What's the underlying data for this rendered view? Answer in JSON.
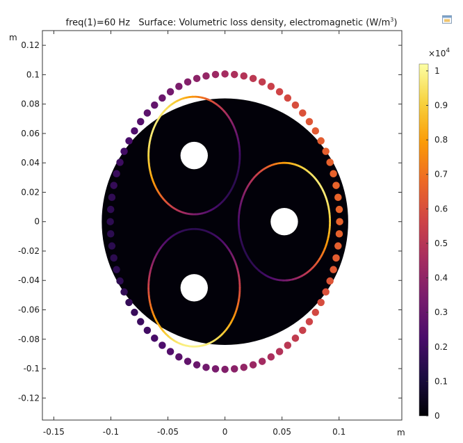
{
  "plot_title": {
    "freq_label": "freq(1)=60 Hz",
    "surface_prefix": "Surface: Volumetric loss density, electromagnetic (W/m",
    "exponent": "3",
    "suffix": ")"
  },
  "corner_icon": "window-toolbar-icon",
  "chart_data": {
    "type": "heatmap",
    "title": "freq(1)=60 Hz   Surface: Volumetric loss density, electromagnetic (W/m3)",
    "xlabel": "m",
    "ylabel": "m",
    "xlim": [
      -0.16,
      0.155
    ],
    "ylim": [
      -0.135,
      0.13
    ],
    "x_ticks": [
      -0.15,
      -0.1,
      -0.05,
      0,
      0.05,
      0.1
    ],
    "x_tick_labels": [
      "-0.15",
      "-0.1",
      "-0.05",
      "0",
      "0.05",
      "0.1"
    ],
    "y_ticks": [
      0.12,
      0.1,
      0.08,
      0.06,
      0.04,
      0.02,
      0,
      -0.02,
      -0.04,
      -0.06,
      -0.08,
      -0.1,
      -0.12
    ],
    "y_tick_labels": [
      "0.12",
      "0.1",
      "0.08",
      "0.06",
      "0.04",
      "0.02",
      "0",
      "-0.02",
      "-0.04",
      "-0.06",
      "-0.08",
      "-0.1",
      "-0.12"
    ],
    "colorbar": {
      "unit_label": "×10",
      "unit_exponent": "4",
      "min": 0,
      "max": 1.02,
      "ticks": [
        1,
        0.9,
        0.8,
        0.7,
        0.6,
        0.5,
        0.4,
        0.3,
        0.2,
        0.1,
        0
      ],
      "tick_labels": [
        "1",
        "0.9",
        "0.8",
        "0.7",
        "0.6",
        "0.5",
        "0.4",
        "0.3",
        "0.2",
        "0.1",
        "0"
      ],
      "colormap": [
        "#000004",
        "#1b0c41",
        "#4a0c6b",
        "#781c6d",
        "#a52c60",
        "#cf4446",
        "#ed6925",
        "#fb9b06",
        "#f7d13d",
        "#fcffa4"
      ]
    },
    "cable": {
      "center": [
        0,
        0
      ],
      "radius": 0.108,
      "value": 0.01
    },
    "armour_wires": {
      "ring_radius": 0.1005,
      "count": 76,
      "wire_radius": 0.0032
    },
    "conductors": [
      {
        "name": "upper-left",
        "center": [
          -0.027,
          0.045
        ],
        "sheath_radius": 0.04,
        "core_radius": 0.012,
        "sheath_loss_angle_deg": 150,
        "sheath_loss_range": [
          0.15,
          0.95
        ]
      },
      {
        "name": "right",
        "center": [
          0.052,
          0
        ],
        "sheath_radius": 0.04,
        "core_radius": 0.012,
        "sheath_loss_angle_deg": 35,
        "sheath_loss_range": [
          0.15,
          0.95
        ]
      },
      {
        "name": "lower-left",
        "center": [
          -0.027,
          -0.045
        ],
        "sheath_radius": 0.04,
        "core_radius": 0.012,
        "sheath_loss_angle_deg": 270,
        "sheath_loss_range": [
          0.15,
          0.97
        ]
      }
    ],
    "armour_loss_profile": {
      "peak_angle_deg": 10,
      "min": 0.15,
      "max": 0.65
    }
  }
}
